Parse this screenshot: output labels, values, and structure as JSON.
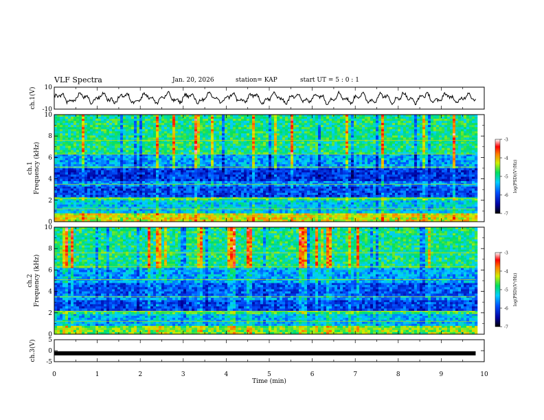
{
  "header": {
    "title": "VLF Spectra",
    "date": "Jan. 20, 2026",
    "station": "station= KAP",
    "start_ut": "start  UT  =   5 : 0  : 1"
  },
  "chart_data": [
    {
      "type": "line",
      "panel": "ch1-waveform",
      "ylabel": "ch.1(V)",
      "ylim": [
        -10,
        10
      ],
      "yticks": [
        -10,
        10
      ],
      "x_range_min": [
        0,
        9.8
      ],
      "description_values": "oscillating waveform roughly between -5 and 5 V"
    },
    {
      "type": "heatmap",
      "panel": "ch1-spectrogram",
      "ylabel": "ch.1 Frequency (kHz)",
      "ylim": [
        0,
        10
      ],
      "yticks": [
        0,
        2,
        4,
        6,
        8,
        10
      ],
      "colorbar": {
        "label": "log(PSD)(V²/Hz)",
        "ticks": [
          -3,
          -4,
          -5,
          -6,
          -7
        ]
      },
      "bands_khz": [
        {
          "from": 0,
          "to": 0.8,
          "level": -4.2
        },
        {
          "from": 0.8,
          "to": 2.0,
          "level": -5.3
        },
        {
          "from": 2.0,
          "to": 2.3,
          "level": -4.8
        },
        {
          "from": 2.3,
          "to": 3.3,
          "level": -6.0
        },
        {
          "from": 3.3,
          "to": 3.8,
          "level": -5.6
        },
        {
          "from": 3.8,
          "to": 5.0,
          "level": -6.1
        },
        {
          "from": 5.0,
          "to": 6.3,
          "level": -5.5
        },
        {
          "from": 6.3,
          "to": 10.0,
          "level": -4.9
        }
      ]
    },
    {
      "type": "heatmap",
      "panel": "ch2-spectrogram",
      "ylabel": "ch.2 Frequency (kHz)",
      "ylim": [
        0,
        10
      ],
      "yticks": [
        0,
        2,
        4,
        6,
        8,
        10
      ],
      "colorbar": {
        "label": "log(PSD)(V²/Hz)",
        "ticks": [
          -3,
          -4,
          -5,
          -6,
          -7
        ]
      },
      "bands_khz": [
        {
          "from": 0,
          "to": 0.8,
          "level": -4.5
        },
        {
          "from": 0.8,
          "to": 1.9,
          "level": -5.4
        },
        {
          "from": 1.9,
          "to": 2.2,
          "level": -4.8
        },
        {
          "from": 2.2,
          "to": 3.2,
          "level": -6.0
        },
        {
          "from": 3.2,
          "to": 3.6,
          "level": -5.6
        },
        {
          "from": 3.6,
          "to": 4.8,
          "level": -5.9
        },
        {
          "from": 4.8,
          "to": 6.2,
          "level": -5.5
        },
        {
          "from": 6.2,
          "to": 10.0,
          "level": -4.9
        }
      ]
    },
    {
      "type": "line",
      "panel": "ch3-waveform",
      "ylabel": "ch.3(V)",
      "ylim": [
        -5,
        5
      ],
      "yticks": [
        -5,
        0,
        5
      ],
      "level_v": -1.2
    }
  ],
  "xaxis": {
    "label": "Time (min)",
    "range": [
      0,
      10
    ],
    "ticks": [
      0,
      1,
      2,
      3,
      4,
      5,
      6,
      7,
      8,
      9,
      10
    ],
    "data_end_min": 9.8
  }
}
